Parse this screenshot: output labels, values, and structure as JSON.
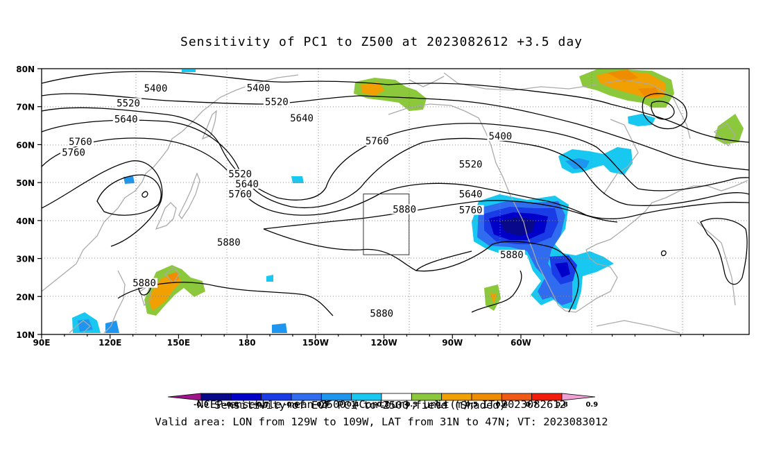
{
  "title": "Sensitivity of PC1 to Z500 at 2023082612 +3.5 day",
  "map": {
    "lat_labels": [
      "80N",
      "70N",
      "60N",
      "50N",
      "40N",
      "30N",
      "20N",
      "10N"
    ],
    "lon_labels": [
      "90E",
      "120E",
      "150E",
      "180",
      "150W",
      "120W",
      "90W",
      "60W"
    ],
    "contour_labels": [
      {
        "text": "5400",
        "lon": 140,
        "lat": 74.7
      },
      {
        "text": "5400",
        "lon": -175,
        "lat": 74.8
      },
      {
        "text": "5400",
        "lon": -69,
        "lat": 62.1
      },
      {
        "text": "5520",
        "lon": 128,
        "lat": 70.8
      },
      {
        "text": "5520",
        "lon": -167,
        "lat": 71.1
      },
      {
        "text": "5520",
        "lon": -82,
        "lat": 54.7
      },
      {
        "text": "5520",
        "lon": 177,
        "lat": 52.1
      },
      {
        "text": "5640",
        "lon": 127,
        "lat": 66.6
      },
      {
        "text": "5640",
        "lon": -180,
        "lat": 49.5
      },
      {
        "text": "5640",
        "lon": -156,
        "lat": 66.8
      },
      {
        "text": "5640",
        "lon": -82,
        "lat": 46.8
      },
      {
        "text": "5760",
        "lon": 107,
        "lat": 60.6
      },
      {
        "text": "5760",
        "lon": 104,
        "lat": 57.8
      },
      {
        "text": "5760",
        "lon": 177,
        "lat": 46.8
      },
      {
        "text": "5760",
        "lon": -123,
        "lat": 60.8
      },
      {
        "text": "5760",
        "lon": -82,
        "lat": 42.6
      },
      {
        "text": "5880",
        "lon": -111,
        "lat": 42.8
      },
      {
        "text": "5880",
        "lon": 172,
        "lat": 34.1
      },
      {
        "text": "5880",
        "lon": 135,
        "lat": 23.4
      },
      {
        "text": "5880",
        "lon": -64,
        "lat": 30.8
      },
      {
        "text": "5880",
        "lon": -121,
        "lat": 15.4
      }
    ],
    "valid_area_box": {
      "lon_min": -129,
      "lon_max": -109,
      "lat_min": 31,
      "lat_max": 47
    }
  },
  "colorbar": {
    "ticks": [
      "-0.9",
      "-0.8",
      "-0.7",
      "-0.6",
      "-0.5",
      "-0.4",
      "-0.3",
      "0.3",
      "0.4",
      "0.5",
      "0.6",
      "0.7",
      "0.8",
      "0.9"
    ],
    "colors": [
      "#08088a",
      "#0000c8",
      "#1a3ce6",
      "#2f6cf0",
      "#1e96f0",
      "#18c8f0",
      "#ffffff",
      "#8cc83c",
      "#f0a000",
      "#f08c00",
      "#f05a14",
      "#f01e0a"
    ],
    "low_extension_color": "#a0148c",
    "high_extension_color": "#f0a0d2",
    "label": "Sensitivity of EOF PC1 to Z500 field (Shaded)"
  },
  "captions": {
    "line1": "NCEP ensemble mean Z500 (Contour); unit(m); IT:2023082612",
    "line2": "Valid area: LON from 129W to 109W, LAT from 31N to 47N; VT: 2023083012"
  }
}
